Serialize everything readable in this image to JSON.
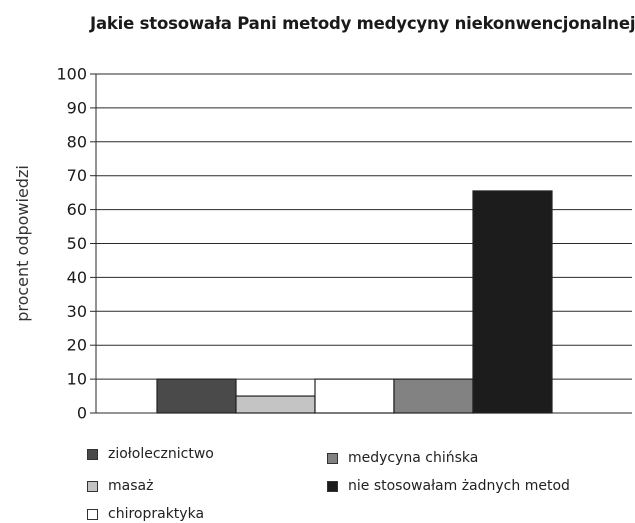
{
  "chart_data": {
    "type": "bar",
    "title": "Jakie stosowała Pani metody medycyny niekonwencjonalnej?",
    "ylabel": "procent odpowiedzi",
    "xlabel": "",
    "ylim": [
      0,
      100
    ],
    "yticks": [
      0,
      10,
      20,
      30,
      40,
      50,
      60,
      70,
      80,
      90,
      100
    ],
    "grid": true,
    "legend_placement": "bottom",
    "series": [
      {
        "name": "ziołolecznictwo",
        "value": 10,
        "color": "#4a4a4a"
      },
      {
        "name": "masaż",
        "value": 5,
        "color": "#c4c4c4"
      },
      {
        "name": "chiropraktyka",
        "value": 10,
        "color": "#ffffff"
      },
      {
        "name": "medycyna chińska",
        "value": 10,
        "color": "#828282"
      },
      {
        "name": "nie stosowałam żadnych metod",
        "value": 65.5,
        "color": "#1c1c1c"
      }
    ]
  }
}
